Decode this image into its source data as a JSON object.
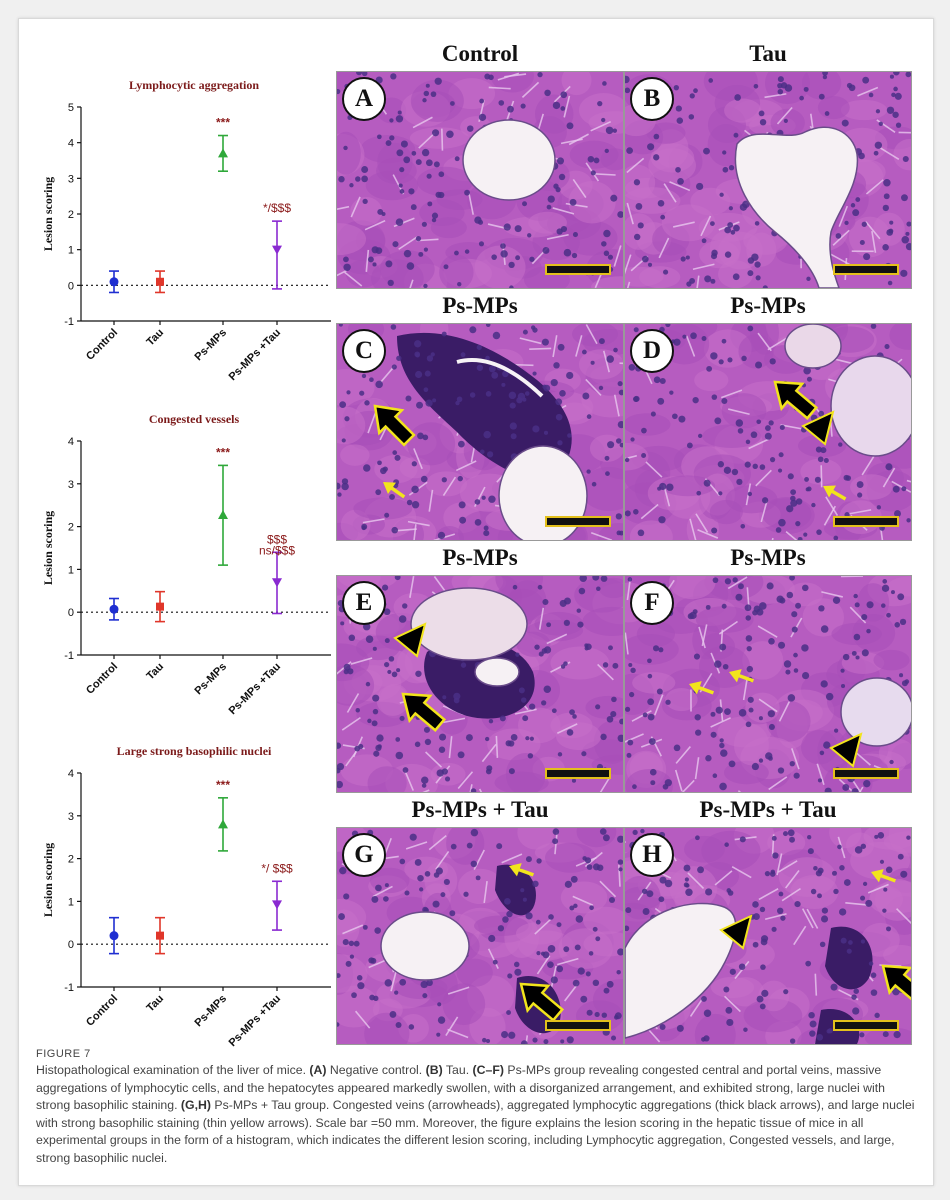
{
  "figure": {
    "label": "FIGURE 7",
    "caption": [
      {
        "t": "Histopathological examination of the liver of mice. "
      },
      {
        "t": "(A)",
        "b": true
      },
      {
        "t": " Negative control. "
      },
      {
        "t": "(B)",
        "b": true
      },
      {
        "t": " Tau. "
      },
      {
        "t": "(C–F)",
        "b": true
      },
      {
        "t": " Ps-MPs group revealing congested central and portal veins, massive aggregations of lymphocytic cells, and the hepatocytes appeared markedly swollen, with a disorganized arrangement, and exhibited strong, large nuclei with strong basophilic staining. "
      },
      {
        "t": "(G,H)",
        "b": true
      },
      {
        "t": " Ps-MPs + Tau group. Congested veins (arrowheads), aggregated lymphocytic aggregations (thick black arrows), and large nuclei with strong basophilic staining (thin yellow arrows). Scale bar =50 mm. Moreover, the figure explains the lesion scoring in the hepatic tissue of mice in all experimental groups in the form of a histogram, which indicates the different lesion scoring, including Lymphocytic aggregation, Congested vessels, and large, strong basophilic nuclei."
      }
    ]
  },
  "colors": {
    "control": "#1f2fd1",
    "tau": "#e0362a",
    "psmps": "#2fa83a",
    "psmpstau": "#8a2ad1",
    "sig": "#8b1a1a",
    "yellow_arrow": "#f2e41c"
  },
  "chart_data": [
    {
      "type": "scatter",
      "title": "Lymphocytic aggregation",
      "ylabel": "Lesion scoring",
      "categories": [
        "Control",
        "Tau",
        "Ps-MPs",
        "Ps-MPs +Tau"
      ],
      "ylim": [
        -1,
        5
      ],
      "yticks": [
        -1,
        0,
        1,
        2,
        3,
        4,
        5
      ],
      "points": [
        {
          "mean": 0.1,
          "lo": -0.2,
          "hi": 0.4,
          "marker": "circle"
        },
        {
          "mean": 0.1,
          "lo": -0.2,
          "hi": 0.4,
          "marker": "square"
        },
        {
          "mean": 3.7,
          "lo": 3.2,
          "hi": 4.2,
          "marker": "triangle-up"
        },
        {
          "mean": 1.0,
          "lo": -0.1,
          "hi": 1.8,
          "marker": "triangle-down"
        }
      ],
      "annotations": [
        {
          "index": 2,
          "text": "***"
        },
        {
          "index": 3,
          "text": "*/$$$"
        }
      ]
    },
    {
      "type": "scatter",
      "title": "Congested vessels",
      "ylabel": "Lesion scoring",
      "categories": [
        "Control",
        "Tau",
        "Ps-MPs",
        "Ps-MPs +Tau"
      ],
      "ylim": [
        -1,
        4
      ],
      "yticks": [
        -1,
        0,
        1,
        2,
        3,
        4
      ],
      "points": [
        {
          "mean": 0.07,
          "lo": -0.18,
          "hi": 0.32,
          "marker": "circle"
        },
        {
          "mean": 0.13,
          "lo": -0.22,
          "hi": 0.48,
          "marker": "square"
        },
        {
          "mean": 2.27,
          "lo": 1.1,
          "hi": 3.43,
          "marker": "triangle-up"
        },
        {
          "mean": 0.7,
          "lo": -0.03,
          "hi": 1.4,
          "marker": "triangle-down"
        }
      ],
      "annotations": [
        {
          "index": 2,
          "text": "***"
        },
        {
          "index": 3,
          "text": "$$$",
          "extra": "ns/$$$"
        }
      ]
    },
    {
      "type": "scatter",
      "title": "Large strong basophilic nuclei",
      "ylabel": "Lesion scoring",
      "categories": [
        "Control",
        "Tau",
        "Ps-MPs",
        "Ps-MPs +Tau"
      ],
      "ylim": [
        -1,
        4
      ],
      "yticks": [
        -1,
        0,
        1,
        2,
        3,
        4
      ],
      "points": [
        {
          "mean": 0.2,
          "lo": -0.22,
          "hi": 0.62,
          "marker": "circle"
        },
        {
          "mean": 0.2,
          "lo": -0.22,
          "hi": 0.62,
          "marker": "square"
        },
        {
          "mean": 2.8,
          "lo": 2.18,
          "hi": 3.42,
          "marker": "triangle-up"
        },
        {
          "mean": 0.93,
          "lo": 0.33,
          "hi": 1.47,
          "marker": "triangle-down"
        }
      ],
      "annotations": [
        {
          "index": 2,
          "text": "***"
        },
        {
          "index": 3,
          "text": "*/ $$$"
        }
      ]
    }
  ],
  "panels": [
    {
      "letter": "A",
      "title": "Control"
    },
    {
      "letter": "B",
      "title": "Tau"
    },
    {
      "letter": "C",
      "title": "Ps-MPs"
    },
    {
      "letter": "D",
      "title": "Ps-MPs"
    },
    {
      "letter": "E",
      "title": "Ps-MPs"
    },
    {
      "letter": "F",
      "title": "Ps-MPs"
    },
    {
      "letter": "G",
      "title": "Ps-MPs + Tau"
    },
    {
      "letter": "H",
      "title": "Ps-MPs + Tau"
    }
  ]
}
